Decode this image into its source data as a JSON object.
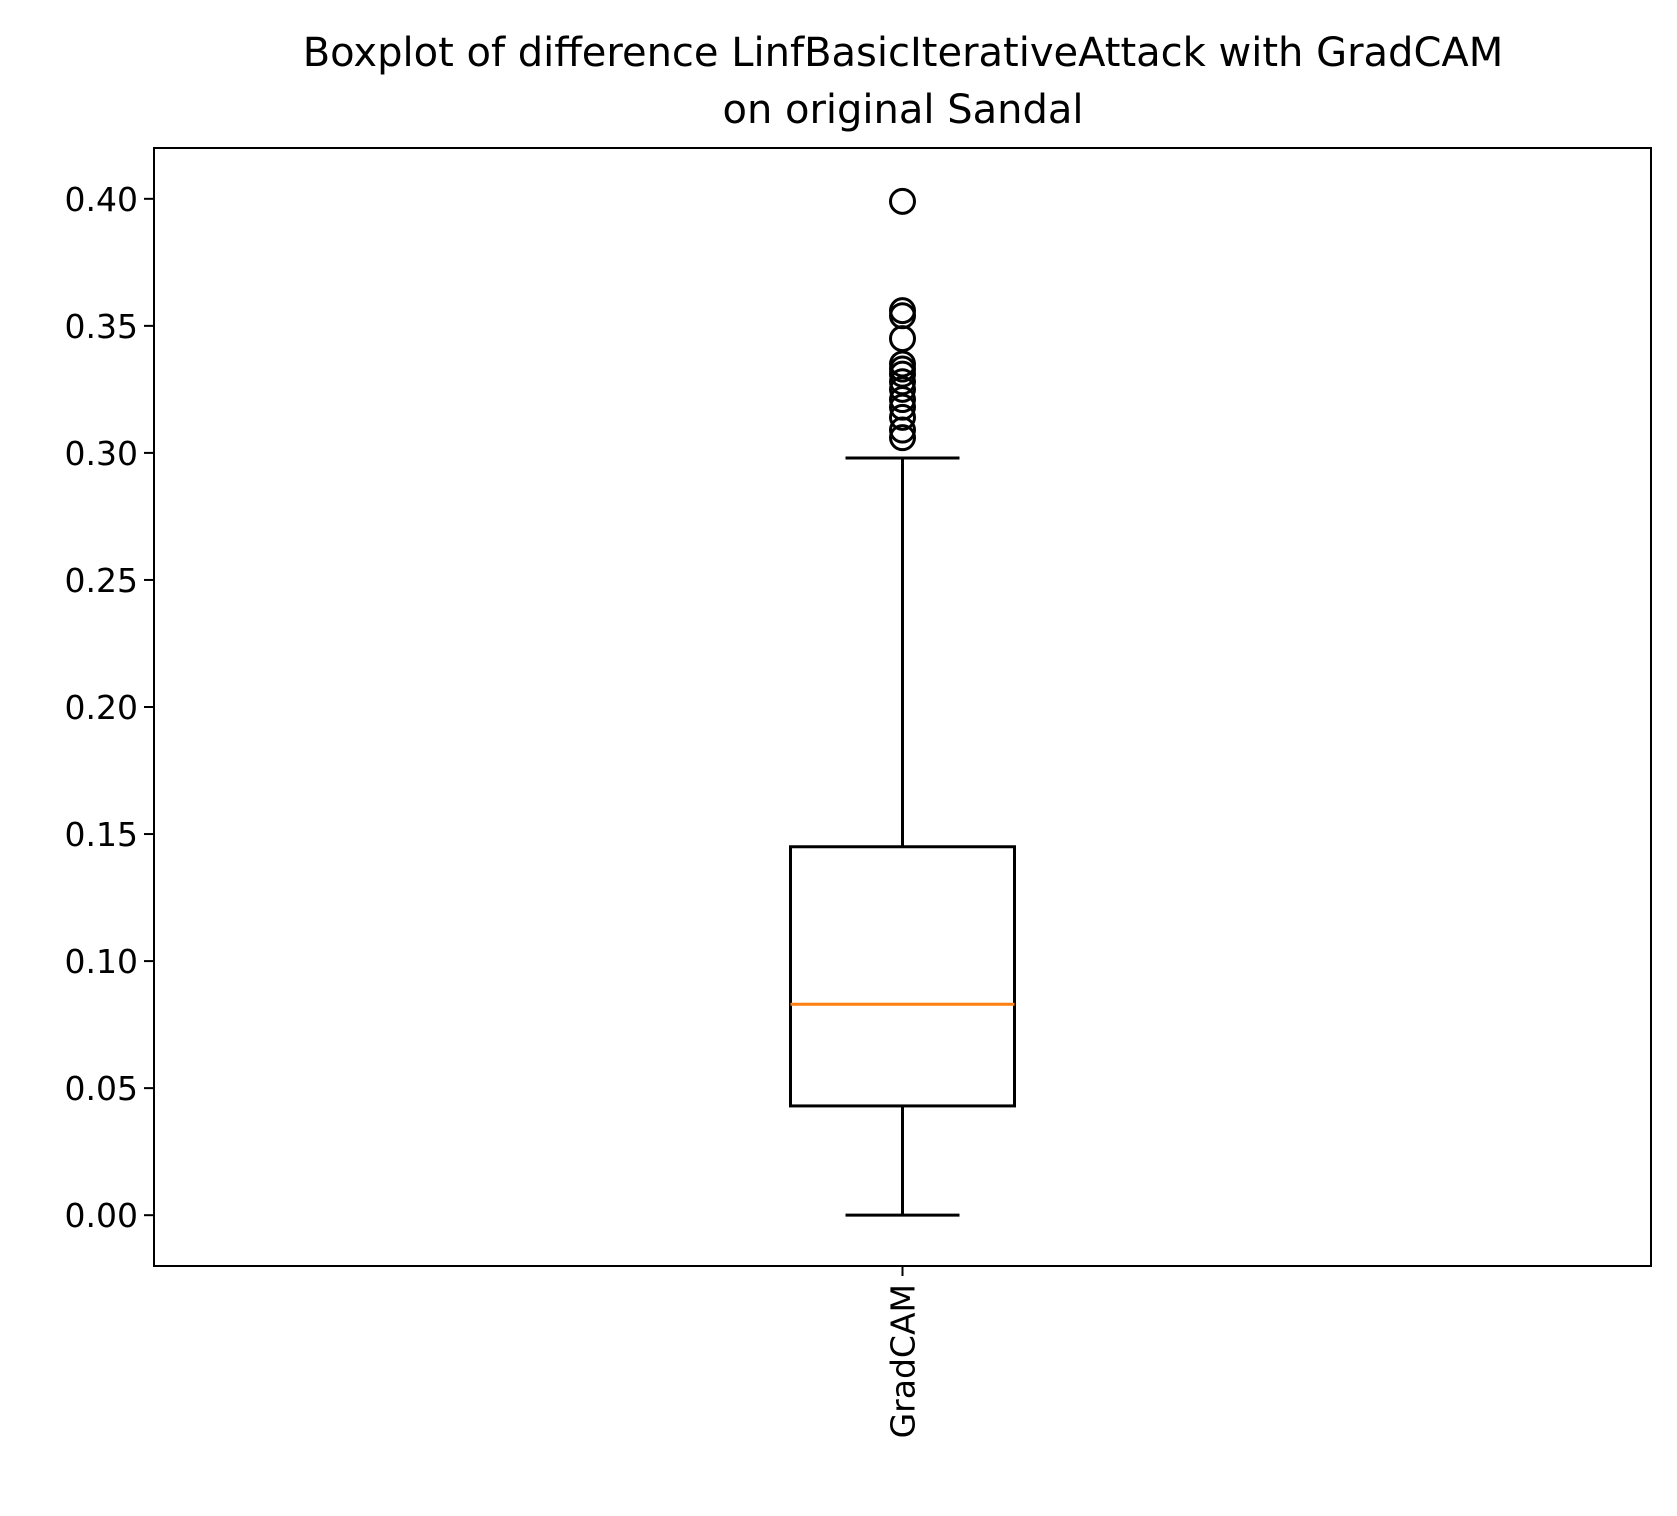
{
  "chart_data": {
    "type": "boxplot",
    "title_lines": [
      "Boxplot of difference LinfBasicIterativeAttack with GradCAM",
      "on original Sandal"
    ],
    "xlabel": "",
    "ylabel": "",
    "categories": [
      "GradCAM"
    ],
    "ylim": [
      -0.02,
      0.42
    ],
    "yticks": [
      {
        "value": 0.0,
        "label": "0.00"
      },
      {
        "value": 0.05,
        "label": "0.05"
      },
      {
        "value": 0.1,
        "label": "0.10"
      },
      {
        "value": 0.15,
        "label": "0.15"
      },
      {
        "value": 0.2,
        "label": "0.20"
      },
      {
        "value": 0.25,
        "label": "0.25"
      },
      {
        "value": 0.3,
        "label": "0.30"
      },
      {
        "value": 0.35,
        "label": "0.35"
      },
      {
        "value": 0.4,
        "label": "0.40"
      }
    ],
    "boxes": [
      {
        "category": "GradCAM",
        "whisker_low": 0.0,
        "q1": 0.043,
        "median": 0.083,
        "q3": 0.145,
        "whisker_high": 0.298,
        "outliers": [
          0.306,
          0.309,
          0.314,
          0.318,
          0.321,
          0.325,
          0.328,
          0.331,
          0.333,
          0.335,
          0.345,
          0.354,
          0.356,
          0.399
        ]
      }
    ],
    "grid": false,
    "legend": "none",
    "colors": {
      "box": "#000000",
      "median": "#ff7f0e",
      "outlier": "#000000"
    }
  }
}
